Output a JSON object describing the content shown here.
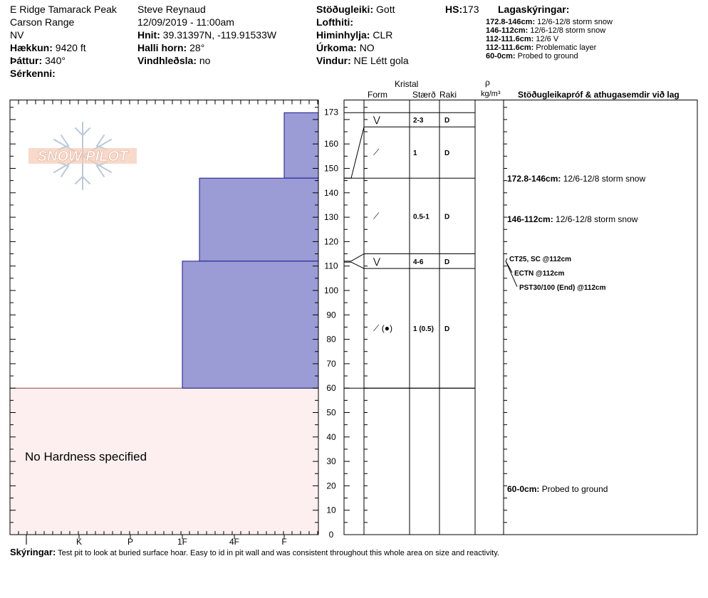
{
  "header": {
    "location": "E Ridge Tamarack Peak",
    "range": "Carson Range",
    "state": "NV",
    "elevation_label": "Hækkun:",
    "elevation_value": "9420 ft",
    "aspect_label": "Þáttur:",
    "aspect_value": "340°",
    "features_label": "Sérkenni:",
    "observer": "Steve Reynaud",
    "datetime": "12/09/2019 - 11:00am",
    "coords_label": "Hnit:",
    "coords_value": "39.31397N, -119.91533W",
    "slope_label": "Halli horn:",
    "slope_value": "28°",
    "wind_loading_label": "Vindhleðsla:",
    "wind_loading_value": "no",
    "stability_label": "Stöðugleiki:",
    "stability_value": "Gott",
    "air_temp_label": "Lofthiti:",
    "sky_label": "Himinhylja:",
    "sky_value": "CLR",
    "precip_label": "Úrkoma:",
    "precip_value": "NO",
    "wind_label": "Vindur:",
    "wind_value": "NE Létt gola",
    "hs_label": "HS:",
    "hs_value": "173",
    "legend_title": "Lagaskýringar:",
    "legend": [
      {
        "range": "172.8-146cm:",
        "text": "12/6-12/8 storm snow"
      },
      {
        "range": "146-112cm:",
        "text": "12/6-12/8 storm snow"
      },
      {
        "range": "112-111.6cm:",
        "text": "12/6 V"
      },
      {
        "range": "112-111.6cm:",
        "text": "Problematic layer"
      },
      {
        "range": "60-0cm:",
        "text": "Probed to ground"
      }
    ]
  },
  "columns": {
    "kristal": "Kristal",
    "form": "Form",
    "size": "Stærð",
    "moisture": "Raki",
    "rho": "ρ",
    "density_unit": "kg/m³",
    "tests_comments": "Stöðugleikapróf & athugasemdir við lag"
  },
  "logo_text": "SNOW PILOT",
  "no_hardness": "No Hardness specified",
  "footer": {
    "label": "Skýringar:",
    "text": "Test pit to look at buried surface hoar.  Easy to id in pit wall and was consistent throughout this whole area on size and reactivity."
  },
  "chart_data": {
    "type": "bar",
    "orientation": "horizontal",
    "y_axis": {
      "min": 0,
      "max": 178,
      "ticks": [
        0,
        10,
        20,
        30,
        40,
        50,
        60,
        70,
        80,
        90,
        100,
        110,
        120,
        130,
        140,
        150,
        160,
        173
      ]
    },
    "x_axis": {
      "categories": [
        "I",
        "K",
        "P",
        "1F",
        "4F",
        "F"
      ]
    },
    "hardness_layers": [
      {
        "top": 172.8,
        "bottom": 146,
        "hardness": "F"
      },
      {
        "top": 146,
        "bottom": 112,
        "hardness": "1F+"
      },
      {
        "top": 112,
        "bottom": 60,
        "hardness": "1F"
      }
    ],
    "unspecified_layer": {
      "top": 60,
      "bottom": 0
    },
    "layers": [
      {
        "top": 172.8,
        "bottom": 167,
        "form": "⋁",
        "size": "2-3",
        "moisture": "D"
      },
      {
        "top": 167,
        "bottom": 146,
        "form": "⟋",
        "size": "1",
        "moisture": "D"
      },
      {
        "top": 146,
        "bottom": 115,
        "form": "⟋",
        "size": "0.5-1",
        "moisture": "D"
      },
      {
        "top": 115,
        "bottom": 109,
        "form": "⋁",
        "size": "4-6",
        "moisture": "D"
      },
      {
        "top": 109,
        "bottom": 60,
        "form": "⟋ (●)",
        "size": "1 (0.5)",
        "moisture": "D"
      }
    ],
    "comments": [
      {
        "depth": 146,
        "range": "172.8-146cm:",
        "text": "12/6-12/8 storm snow"
      },
      {
        "depth": 129.5,
        "range": "146-112cm:",
        "text": "12/6-12/8 storm snow"
      },
      {
        "depth": 19,
        "range": "60-0cm:",
        "text": "Probed to ground"
      }
    ],
    "tests": [
      {
        "text": "CT25, SC @112cm"
      },
      {
        "text": "ECTN @112cm"
      },
      {
        "text": "PST30/100 (End) @112cm"
      }
    ]
  }
}
